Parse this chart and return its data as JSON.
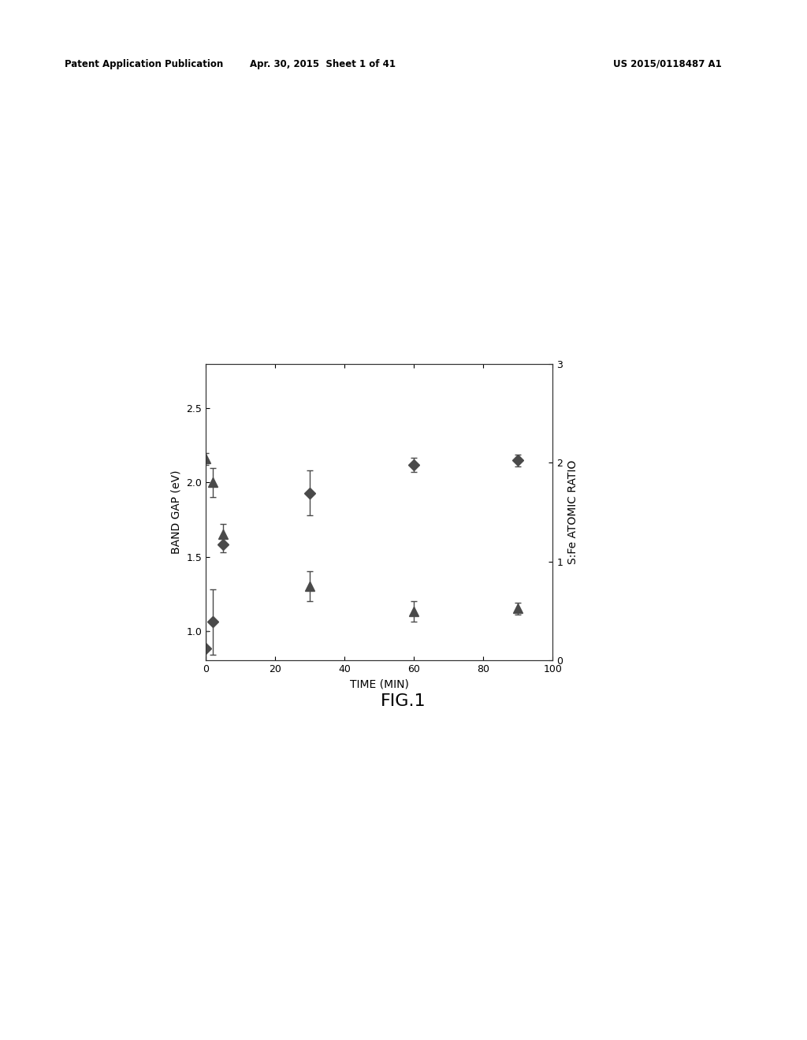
{
  "title": "FIG.1",
  "header_left": "Patent Application Publication",
  "header_center": "Apr. 30, 2015  Sheet 1 of 41",
  "header_right": "US 2015/0118487 A1",
  "xlabel": "TIME (MIN)",
  "ylabel_left": "BAND GAP (eV)",
  "ylabel_right": "S:Fe ATOMIC RATIO",
  "xlim": [
    0,
    100
  ],
  "ylim_left": [
    0.8,
    2.8
  ],
  "ylim_right": [
    0.0,
    3.0
  ],
  "yticks_left": [
    1.0,
    1.5,
    2.0,
    2.5
  ],
  "yticks_right": [
    0.0,
    1.0,
    2.0,
    3.0
  ],
  "xticks": [
    0,
    20,
    40,
    60,
    80,
    100
  ],
  "diamond_x": [
    0,
    2,
    5,
    30,
    60,
    90
  ],
  "diamond_y": [
    0.88,
    1.06,
    1.58,
    1.93,
    2.12,
    2.15
  ],
  "diamond_yerr": [
    0.12,
    0.22,
    0.05,
    0.15,
    0.05,
    0.04
  ],
  "triangle_x": [
    0,
    2,
    5,
    30,
    60,
    90
  ],
  "triangle_y": [
    2.16,
    2.0,
    1.65,
    1.3,
    1.13,
    1.15
  ],
  "triangle_yerr": [
    0.04,
    0.1,
    0.07,
    0.1,
    0.07,
    0.04
  ],
  "marker_color": "#4a4a4a",
  "background_color": "#ffffff",
  "plot_bg": "#ffffff",
  "fontsize_axis_label": 10,
  "fontsize_tick": 9,
  "fontsize_header": 8.5,
  "fontsize_title": 16
}
